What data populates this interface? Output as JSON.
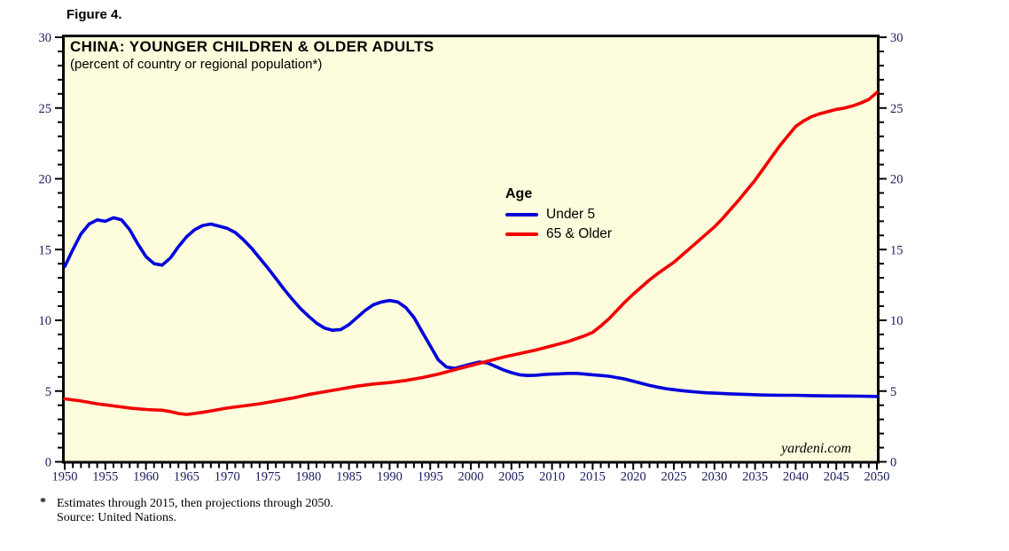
{
  "figure_label": "Figure 4.",
  "chart": {
    "title": "CHINA: YOUNGER CHILDREN & OLDER ADULTS",
    "subtitle": "(percent of country or regional population*)",
    "watermark": "yardeni.com",
    "legend": {
      "title": "Age",
      "items": [
        {
          "label": "Under 5",
          "color": "#0000DD"
        },
        {
          "label": "65 & Older",
          "color": "#F20000"
        }
      ]
    },
    "colors": {
      "plot_background": "#FDFCDC",
      "frame": "#000000",
      "tick_label": "#1A1A5A",
      "under5_line": "#0000DD",
      "older65_line": "#F20000"
    }
  },
  "chart_data": {
    "type": "line",
    "title": "CHINA: YOUNGER CHILDREN & OLDER ADULTS",
    "subtitle": "(percent of country or regional population*)",
    "xlabel": "",
    "ylabel": "percent of country or regional population",
    "x_axis": {
      "min": 1950,
      "max": 2050,
      "major_tick": 5,
      "minor_tick": 1,
      "tick_labels": [
        "1950",
        "1955",
        "1960",
        "1965",
        "1970",
        "1975",
        "1980",
        "1985",
        "1990",
        "1995",
        "2000",
        "2005",
        "2010",
        "2015",
        "2020",
        "2025",
        "2030",
        "2035",
        "2040",
        "2045",
        "2050"
      ]
    },
    "y_axis": {
      "min": 0,
      "max": 30,
      "major_tick": 5,
      "minor_tick": 1,
      "tick_labels": [
        "0",
        "5",
        "10",
        "15",
        "20",
        "25",
        "30"
      ],
      "sides": [
        "left",
        "right"
      ]
    },
    "grid": false,
    "legend_position": "inside-center",
    "series": [
      {
        "name": "Under 5",
        "color": "#0000DD",
        "points": [
          [
            1950,
            13.8
          ],
          [
            1951,
            15.0
          ],
          [
            1952,
            16.1
          ],
          [
            1953,
            16.8
          ],
          [
            1954,
            17.1
          ],
          [
            1955,
            17.0
          ],
          [
            1956,
            17.25
          ],
          [
            1957,
            17.1
          ],
          [
            1958,
            16.4
          ],
          [
            1959,
            15.4
          ],
          [
            1960,
            14.5
          ],
          [
            1961,
            14.0
          ],
          [
            1962,
            13.9
          ],
          [
            1963,
            14.4
          ],
          [
            1964,
            15.2
          ],
          [
            1965,
            15.9
          ],
          [
            1966,
            16.4
          ],
          [
            1967,
            16.7
          ],
          [
            1968,
            16.8
          ],
          [
            1969,
            16.65
          ],
          [
            1970,
            16.5
          ],
          [
            1971,
            16.2
          ],
          [
            1972,
            15.7
          ],
          [
            1973,
            15.1
          ],
          [
            1974,
            14.4
          ],
          [
            1975,
            13.7
          ],
          [
            1976,
            12.95
          ],
          [
            1977,
            12.2
          ],
          [
            1978,
            11.5
          ],
          [
            1979,
            10.85
          ],
          [
            1980,
            10.3
          ],
          [
            1981,
            9.8
          ],
          [
            1982,
            9.45
          ],
          [
            1983,
            9.3
          ],
          [
            1984,
            9.35
          ],
          [
            1985,
            9.7
          ],
          [
            1986,
            10.2
          ],
          [
            1987,
            10.7
          ],
          [
            1988,
            11.1
          ],
          [
            1989,
            11.3
          ],
          [
            1990,
            11.4
          ],
          [
            1991,
            11.3
          ],
          [
            1992,
            10.9
          ],
          [
            1993,
            10.2
          ],
          [
            1994,
            9.2
          ],
          [
            1995,
            8.2
          ],
          [
            1996,
            7.2
          ],
          [
            1997,
            6.7
          ],
          [
            1998,
            6.6
          ],
          [
            1999,
            6.75
          ],
          [
            2000,
            6.9
          ],
          [
            2001,
            7.05
          ],
          [
            2002,
            7.0
          ],
          [
            2003,
            6.75
          ],
          [
            2004,
            6.5
          ],
          [
            2005,
            6.3
          ],
          [
            2006,
            6.15
          ],
          [
            2007,
            6.1
          ],
          [
            2008,
            6.12
          ],
          [
            2009,
            6.17
          ],
          [
            2010,
            6.2
          ],
          [
            2011,
            6.22
          ],
          [
            2012,
            6.25
          ],
          [
            2013,
            6.25
          ],
          [
            2014,
            6.2
          ],
          [
            2015,
            6.15
          ],
          [
            2016,
            6.1
          ],
          [
            2017,
            6.05
          ],
          [
            2018,
            5.95
          ],
          [
            2019,
            5.85
          ],
          [
            2020,
            5.7
          ],
          [
            2021,
            5.55
          ],
          [
            2022,
            5.4
          ],
          [
            2023,
            5.28
          ],
          [
            2024,
            5.17
          ],
          [
            2025,
            5.1
          ],
          [
            2026,
            5.03
          ],
          [
            2027,
            4.97
          ],
          [
            2028,
            4.92
          ],
          [
            2029,
            4.88
          ],
          [
            2030,
            4.85
          ],
          [
            2032,
            4.8
          ],
          [
            2034,
            4.76
          ],
          [
            2036,
            4.72
          ],
          [
            2038,
            4.7
          ],
          [
            2040,
            4.7
          ],
          [
            2042,
            4.68
          ],
          [
            2044,
            4.66
          ],
          [
            2046,
            4.65
          ],
          [
            2048,
            4.64
          ],
          [
            2050,
            4.62
          ]
        ]
      },
      {
        "name": "65 & Older",
        "color": "#F20000",
        "points": [
          [
            1950,
            4.45
          ],
          [
            1952,
            4.3
          ],
          [
            1954,
            4.1
          ],
          [
            1956,
            3.95
          ],
          [
            1958,
            3.8
          ],
          [
            1960,
            3.7
          ],
          [
            1961,
            3.67
          ],
          [
            1962,
            3.65
          ],
          [
            1963,
            3.55
          ],
          [
            1964,
            3.42
          ],
          [
            1965,
            3.35
          ],
          [
            1966,
            3.42
          ],
          [
            1967,
            3.5
          ],
          [
            1968,
            3.6
          ],
          [
            1969,
            3.7
          ],
          [
            1970,
            3.8
          ],
          [
            1972,
            3.95
          ],
          [
            1974,
            4.1
          ],
          [
            1976,
            4.3
          ],
          [
            1978,
            4.5
          ],
          [
            1980,
            4.75
          ],
          [
            1982,
            4.95
          ],
          [
            1984,
            5.15
          ],
          [
            1986,
            5.35
          ],
          [
            1988,
            5.5
          ],
          [
            1990,
            5.6
          ],
          [
            1992,
            5.75
          ],
          [
            1994,
            5.95
          ],
          [
            1996,
            6.2
          ],
          [
            1998,
            6.5
          ],
          [
            2000,
            6.8
          ],
          [
            2001,
            6.95
          ],
          [
            2002,
            7.1
          ],
          [
            2004,
            7.4
          ],
          [
            2006,
            7.65
          ],
          [
            2008,
            7.9
          ],
          [
            2010,
            8.2
          ],
          [
            2012,
            8.5
          ],
          [
            2014,
            8.9
          ],
          [
            2015,
            9.15
          ],
          [
            2016,
            9.6
          ],
          [
            2017,
            10.1
          ],
          [
            2018,
            10.7
          ],
          [
            2019,
            11.3
          ],
          [
            2020,
            11.85
          ],
          [
            2021,
            12.35
          ],
          [
            2022,
            12.85
          ],
          [
            2023,
            13.3
          ],
          [
            2024,
            13.7
          ],
          [
            2025,
            14.1
          ],
          [
            2026,
            14.6
          ],
          [
            2027,
            15.1
          ],
          [
            2028,
            15.6
          ],
          [
            2029,
            16.1
          ],
          [
            2030,
            16.6
          ],
          [
            2031,
            17.2
          ],
          [
            2032,
            17.85
          ],
          [
            2033,
            18.5
          ],
          [
            2034,
            19.2
          ],
          [
            2035,
            19.9
          ],
          [
            2036,
            20.7
          ],
          [
            2037,
            21.5
          ],
          [
            2038,
            22.3
          ],
          [
            2039,
            23.0
          ],
          [
            2040,
            23.7
          ],
          [
            2041,
            24.1
          ],
          [
            2042,
            24.4
          ],
          [
            2043,
            24.6
          ],
          [
            2044,
            24.75
          ],
          [
            2045,
            24.9
          ],
          [
            2046,
            25.0
          ],
          [
            2047,
            25.15
          ],
          [
            2048,
            25.35
          ],
          [
            2049,
            25.6
          ],
          [
            2050,
            26.1
          ]
        ]
      }
    ]
  },
  "footnote": {
    "marker": "*",
    "line1": "Estimates through 2015, then projections through 2050.",
    "line2": "Source: United Nations."
  }
}
